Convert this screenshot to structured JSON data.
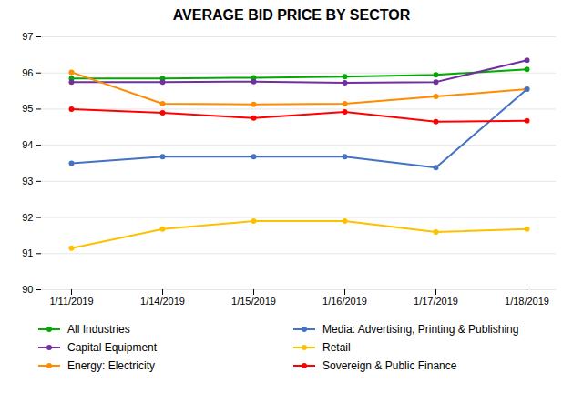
{
  "chart_data": {
    "type": "line",
    "title": "AVERAGE BID PRICE BY SECTOR",
    "categories": [
      "1/11/2019",
      "1/14/2019",
      "1/15/2019",
      "1/16/2019",
      "1/17/2019",
      "1/18/2019"
    ],
    "ylim": [
      90,
      97
    ],
    "yticks": [
      90,
      91,
      92,
      93,
      94,
      95,
      96,
      97
    ],
    "grid": true,
    "legend": "bottom",
    "marker": "circle",
    "series": [
      {
        "name": "All Industries",
        "color": "#00AA00",
        "values": [
          95.85,
          95.85,
          95.87,
          95.9,
          95.95,
          96.1
        ]
      },
      {
        "name": "Capital Equipment",
        "color": "#7030A0",
        "values": [
          95.75,
          95.75,
          95.76,
          95.73,
          95.75,
          96.35
        ]
      },
      {
        "name": "Energy: Electricity",
        "color": "#FF8C00",
        "values": [
          96.02,
          95.15,
          95.13,
          95.15,
          95.35,
          95.55
        ]
      },
      {
        "name": "Media: Advertising, Printing & Publishing",
        "color": "#4472C4",
        "values": [
          93.5,
          93.68,
          93.68,
          93.68,
          93.38,
          95.55
        ]
      },
      {
        "name": "Retail",
        "color": "#FFC000",
        "values": [
          91.15,
          91.68,
          91.9,
          91.9,
          91.6,
          91.68
        ]
      },
      {
        "name": "Sovereign & Public Finance",
        "color": "#FF0000",
        "values": [
          95.0,
          94.9,
          94.75,
          94.92,
          94.65,
          94.68
        ]
      }
    ]
  }
}
